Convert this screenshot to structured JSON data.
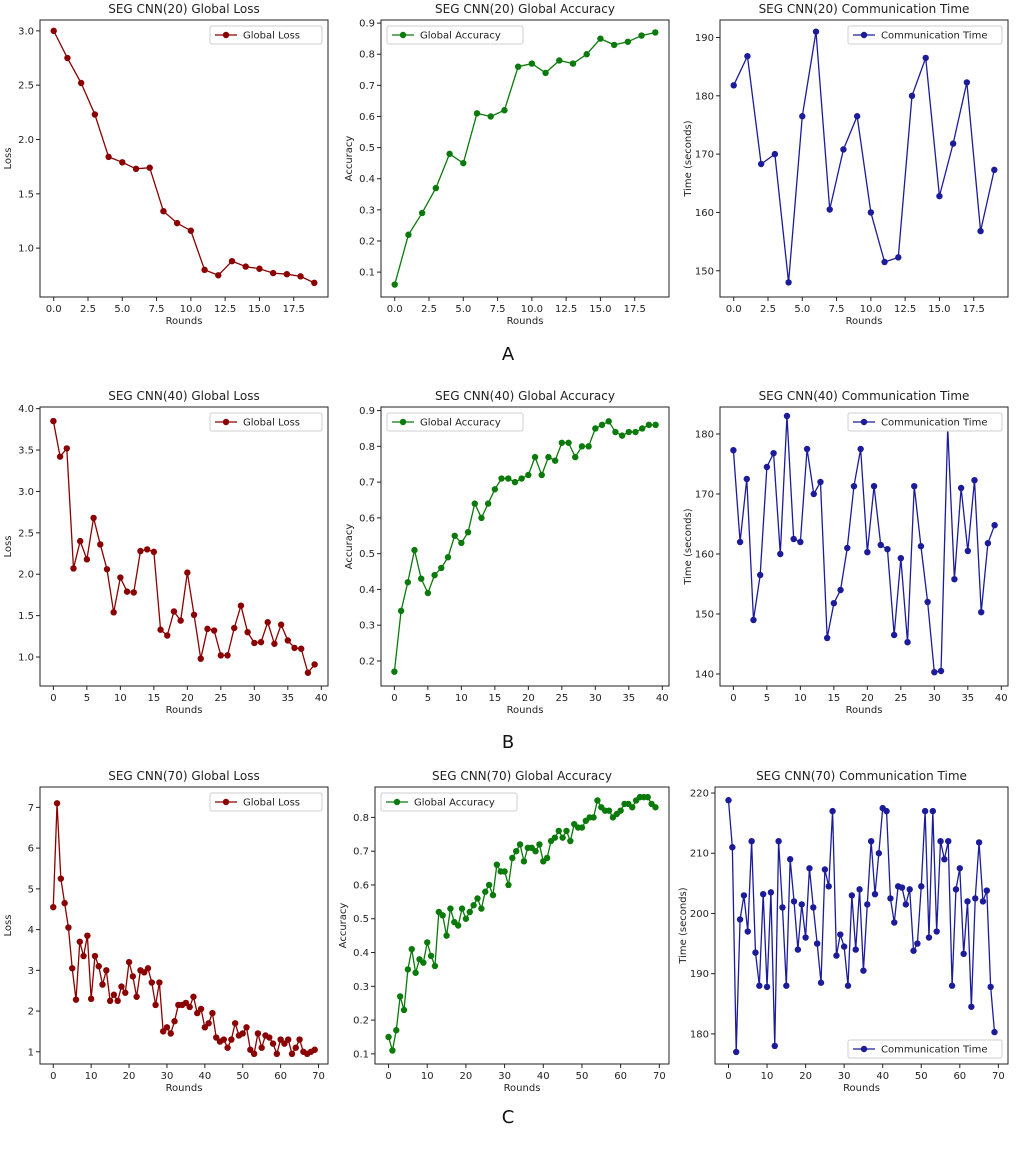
{
  "figure": {
    "row_labels": [
      "A",
      "B",
      "C"
    ],
    "colors": {
      "loss": "#8b0000",
      "accuracy": "#0a7a0a",
      "time": "#1c1c9a"
    }
  },
  "chart_data": [
    {
      "type": "line",
      "title": "SEG CNN(20) Global Loss",
      "xlabel": "Rounds",
      "ylabel": "Loss",
      "series": [
        {
          "name": "Global Loss",
          "color": "#8b0000",
          "values": [
            3.0,
            2.75,
            2.52,
            2.23,
            1.84,
            1.79,
            1.73,
            1.74,
            1.34,
            1.23,
            1.16,
            0.8,
            0.75,
            0.88,
            0.83,
            0.81,
            0.77,
            0.76,
            0.74,
            0.68
          ]
        }
      ],
      "xlim": [
        -1,
        20
      ],
      "ylim": [
        0.55,
        3.1
      ],
      "xticks": [
        0,
        2.5,
        5,
        7.5,
        10,
        12.5,
        15,
        17.5
      ],
      "xtick_labels": [
        "0.0",
        "2.5",
        "5.0",
        "7.5",
        "10.0",
        "12.5",
        "15.0",
        "17.5"
      ],
      "yticks": [
        1.0,
        1.5,
        2.0,
        2.5,
        3.0
      ],
      "ytick_labels": [
        "1.0",
        "1.5",
        "2.0",
        "2.5",
        "3.0"
      ],
      "legend": "top-right"
    },
    {
      "type": "line",
      "title": "SEG CNN(20) Global Accuracy",
      "xlabel": "Rounds",
      "ylabel": "Accuracy",
      "series": [
        {
          "name": "Global Accuracy",
          "color": "#0a7a0a",
          "values": [
            0.06,
            0.22,
            0.29,
            0.37,
            0.48,
            0.45,
            0.61,
            0.6,
            0.62,
            0.76,
            0.77,
            0.74,
            0.78,
            0.77,
            0.8,
            0.85,
            0.83,
            0.84,
            0.86,
            0.87
          ]
        }
      ],
      "xlim": [
        -1,
        20
      ],
      "ylim": [
        0.02,
        0.91
      ],
      "xticks": [
        0,
        2.5,
        5,
        7.5,
        10,
        12.5,
        15,
        17.5
      ],
      "xtick_labels": [
        "0.0",
        "2.5",
        "5.0",
        "7.5",
        "10.0",
        "12.5",
        "15.0",
        "17.5"
      ],
      "yticks": [
        0.1,
        0.2,
        0.3,
        0.4,
        0.5,
        0.6,
        0.7,
        0.8,
        0.9
      ],
      "ytick_labels": [
        "0.1",
        "0.2",
        "0.3",
        "0.4",
        "0.5",
        "0.6",
        "0.7",
        "0.8",
        "0.9"
      ],
      "legend": "top-left"
    },
    {
      "type": "line",
      "title": "SEG CNN(20) Communication Time",
      "xlabel": "Rounds",
      "ylabel": "Time (seconds)",
      "series": [
        {
          "name": "Communication Time",
          "color": "#1c1c9a",
          "values": [
            181.8,
            186.8,
            168.3,
            170.0,
            148.0,
            176.5,
            191.0,
            160.5,
            170.8,
            176.5,
            160.0,
            151.5,
            152.3,
            180.0,
            186.5,
            162.8,
            171.8,
            182.3,
            156.8,
            167.3
          ]
        }
      ],
      "xlim": [
        -1,
        20
      ],
      "ylim": [
        145.5,
        193
      ],
      "xticks": [
        0,
        2.5,
        5,
        7.5,
        10,
        12.5,
        15,
        17.5
      ],
      "xtick_labels": [
        "0.0",
        "2.5",
        "5.0",
        "7.5",
        "10.0",
        "12.5",
        "15.0",
        "17.5"
      ],
      "yticks": [
        150,
        160,
        170,
        180,
        190
      ],
      "ytick_labels": [
        "150",
        "160",
        "170",
        "180",
        "190"
      ],
      "legend": "top-right"
    },
    {
      "type": "line",
      "title": "SEG CNN(40) Global Loss",
      "xlabel": "Rounds",
      "ylabel": "Loss",
      "series": [
        {
          "name": "Global Loss",
          "color": "#8b0000",
          "values": [
            3.85,
            3.42,
            3.52,
            2.07,
            2.4,
            2.18,
            2.68,
            2.36,
            2.06,
            1.54,
            1.96,
            1.79,
            1.78,
            2.28,
            2.3,
            2.27,
            1.33,
            1.26,
            1.55,
            1.44,
            2.02,
            1.51,
            0.98,
            1.34,
            1.32,
            1.02,
            1.02,
            1.35,
            1.62,
            1.3,
            1.17,
            1.18,
            1.42,
            1.16,
            1.39,
            1.2,
            1.11,
            1.1,
            0.81,
            0.91
          ]
        }
      ],
      "xlim": [
        -2,
        41
      ],
      "ylim": [
        0.65,
        4.02
      ],
      "xticks": [
        0,
        5,
        10,
        15,
        20,
        25,
        30,
        35,
        40
      ],
      "xtick_labels": [
        "0",
        "5",
        "10",
        "15",
        "20",
        "25",
        "30",
        "35",
        "40"
      ],
      "yticks": [
        1.0,
        1.5,
        2.0,
        2.5,
        3.0,
        3.5,
        4.0
      ],
      "ytick_labels": [
        "1.0",
        "1.5",
        "2.0",
        "2.5",
        "3.0",
        "3.5",
        "4.0"
      ],
      "legend": "top-right"
    },
    {
      "type": "line",
      "title": "SEG CNN(40) Global Accuracy",
      "xlabel": "Rounds",
      "ylabel": "Accuracy",
      "series": [
        {
          "name": "Global Accuracy",
          "color": "#0a7a0a",
          "values": [
            0.17,
            0.34,
            0.42,
            0.51,
            0.43,
            0.39,
            0.44,
            0.46,
            0.49,
            0.55,
            0.53,
            0.56,
            0.64,
            0.6,
            0.64,
            0.68,
            0.71,
            0.71,
            0.7,
            0.71,
            0.72,
            0.77,
            0.72,
            0.77,
            0.76,
            0.81,
            0.81,
            0.77,
            0.8,
            0.8,
            0.85,
            0.86,
            0.87,
            0.84,
            0.83,
            0.84,
            0.84,
            0.85,
            0.86,
            0.86
          ]
        }
      ],
      "xlim": [
        -2,
        41
      ],
      "ylim": [
        0.13,
        0.91
      ],
      "xticks": [
        0,
        5,
        10,
        15,
        20,
        25,
        30,
        35,
        40
      ],
      "xtick_labels": [
        "0",
        "5",
        "10",
        "15",
        "20",
        "25",
        "30",
        "35",
        "40"
      ],
      "yticks": [
        0.2,
        0.3,
        0.4,
        0.5,
        0.6,
        0.7,
        0.8,
        0.9
      ],
      "ytick_labels": [
        "0.2",
        "0.3",
        "0.4",
        "0.5",
        "0.6",
        "0.7",
        "0.8",
        "0.9"
      ],
      "legend": "top-left"
    },
    {
      "type": "line",
      "title": "SEG CNN(40) Communication Time",
      "xlabel": "Rounds",
      "ylabel": "Time (seconds)",
      "series": [
        {
          "name": "Communication Time",
          "color": "#1c1c9a",
          "values": [
            177.3,
            162.0,
            172.5,
            149.0,
            156.5,
            174.5,
            176.8,
            160.0,
            183.0,
            162.5,
            162.0,
            177.5,
            170.0,
            172.0,
            146.0,
            151.8,
            154.0,
            161.0,
            171.3,
            177.5,
            160.3,
            171.3,
            161.5,
            160.8,
            146.5,
            159.3,
            145.3,
            171.3,
            161.3,
            152.0,
            140.3,
            140.5,
            181.0,
            155.8,
            171.0,
            160.5,
            172.3,
            150.3,
            161.8,
            164.8
          ]
        }
      ],
      "xlim": [
        -2,
        41
      ],
      "ylim": [
        138,
        184.5
      ],
      "xticks": [
        0,
        5,
        10,
        15,
        20,
        25,
        30,
        35,
        40
      ],
      "xtick_labels": [
        "0",
        "5",
        "10",
        "15",
        "20",
        "25",
        "30",
        "35",
        "40"
      ],
      "yticks": [
        140,
        150,
        160,
        170,
        180
      ],
      "ytick_labels": [
        "140",
        "150",
        "160",
        "170",
        "180"
      ],
      "legend": "top-right"
    },
    {
      "type": "line",
      "title": "SEG CNN(70) Global Loss",
      "xlabel": "Rounds",
      "ylabel": "Loss",
      "series": [
        {
          "name": "Global Loss",
          "color": "#8b0000",
          "values": [
            4.55,
            7.1,
            5.25,
            4.65,
            4.05,
            3.05,
            2.28,
            3.7,
            3.35,
            3.85,
            2.3,
            3.35,
            3.1,
            2.65,
            3.0,
            2.25,
            2.4,
            2.25,
            2.6,
            2.45,
            3.2,
            2.85,
            2.35,
            3.0,
            2.95,
            3.05,
            2.7,
            2.15,
            2.7,
            1.5,
            1.6,
            1.45,
            1.75,
            2.15,
            2.15,
            2.2,
            2.1,
            2.35,
            1.95,
            2.05,
            1.6,
            1.7,
            1.95,
            1.35,
            1.25,
            1.3,
            1.1,
            1.3,
            1.7,
            1.4,
            1.45,
            1.6,
            1.05,
            0.95,
            1.45,
            1.1,
            1.4,
            1.35,
            1.2,
            0.95,
            1.3,
            1.2,
            1.3,
            0.95,
            1.1,
            1.3,
            1.0,
            0.95,
            1.0,
            1.05
          ]
        }
      ],
      "xlim": [
        -3.5,
        72.5
      ],
      "ylim": [
        0.7,
        7.5
      ],
      "xticks": [
        0,
        10,
        20,
        30,
        40,
        50,
        60,
        70
      ],
      "xtick_labels": [
        "0",
        "10",
        "20",
        "30",
        "40",
        "50",
        "60",
        "70"
      ],
      "yticks": [
        1,
        2,
        3,
        4,
        5,
        6,
        7
      ],
      "ytick_labels": [
        "1",
        "2",
        "3",
        "4",
        "5",
        "6",
        "7"
      ],
      "legend": "top-right"
    },
    {
      "type": "line",
      "title": "SEG CNN(70) Global Accuracy",
      "xlabel": "Rounds",
      "ylabel": "Accuracy",
      "series": [
        {
          "name": "Global Accuracy",
          "color": "#0a7a0a",
          "values": [
            0.15,
            0.11,
            0.17,
            0.27,
            0.23,
            0.35,
            0.41,
            0.34,
            0.38,
            0.37,
            0.43,
            0.39,
            0.36,
            0.52,
            0.51,
            0.45,
            0.53,
            0.49,
            0.48,
            0.53,
            0.5,
            0.52,
            0.54,
            0.56,
            0.53,
            0.58,
            0.6,
            0.57,
            0.66,
            0.64,
            0.64,
            0.6,
            0.68,
            0.7,
            0.72,
            0.67,
            0.71,
            0.71,
            0.7,
            0.72,
            0.67,
            0.68,
            0.73,
            0.74,
            0.76,
            0.74,
            0.76,
            0.73,
            0.78,
            0.77,
            0.77,
            0.79,
            0.8,
            0.8,
            0.85,
            0.83,
            0.82,
            0.82,
            0.8,
            0.81,
            0.82,
            0.84,
            0.84,
            0.83,
            0.85,
            0.86,
            0.86,
            0.86,
            0.84,
            0.83
          ]
        }
      ],
      "xlim": [
        -3.5,
        72.5
      ],
      "ylim": [
        0.07,
        0.89
      ],
      "xticks": [
        0,
        10,
        20,
        30,
        40,
        50,
        60,
        70
      ],
      "xtick_labels": [
        "0",
        "10",
        "20",
        "30",
        "40",
        "50",
        "60",
        "70"
      ],
      "yticks": [
        0.1,
        0.2,
        0.3,
        0.4,
        0.5,
        0.6,
        0.7,
        0.8
      ],
      "ytick_labels": [
        "0.1",
        "0.2",
        "0.3",
        "0.4",
        "0.5",
        "0.6",
        "0.7",
        "0.8"
      ],
      "legend": "top-left"
    },
    {
      "type": "line",
      "title": "SEG CNN(70) Communication Time",
      "xlabel": "Rounds",
      "ylabel": "Time (seconds)",
      "series": [
        {
          "name": "Communication Time",
          "color": "#1c1c9a",
          "values": [
            218.8,
            211.0,
            177.0,
            199.0,
            203.0,
            197.0,
            212.0,
            193.5,
            188.0,
            203.2,
            187.8,
            203.5,
            178.0,
            212.0,
            201.0,
            188.0,
            209.0,
            202.0,
            194.0,
            201.5,
            196.0,
            207.5,
            201.0,
            195.0,
            188.5,
            207.3,
            204.5,
            217.0,
            193.0,
            196.5,
            194.5,
            188.0,
            203.0,
            194.0,
            204.0,
            190.5,
            201.5,
            212.0,
            203.2,
            210.0,
            217.5,
            217.0,
            202.5,
            198.5,
            204.5,
            204.3,
            201.5,
            204.0,
            193.8,
            195.0,
            204.5,
            217.0,
            196.0,
            217.0,
            197.0,
            212.0,
            209.0,
            212.0,
            188.0,
            204.0,
            207.5,
            193.3,
            202.0,
            184.5,
            202.5,
            211.8,
            202.0,
            203.8,
            187.8,
            180.3
          ]
        }
      ],
      "xlim": [
        -3.5,
        72.5
      ],
      "ylim": [
        175,
        221
      ],
      "xticks": [
        0,
        10,
        20,
        30,
        40,
        50,
        60,
        70
      ],
      "xtick_labels": [
        "0",
        "10",
        "20",
        "30",
        "40",
        "50",
        "60",
        "70"
      ],
      "yticks": [
        180,
        190,
        200,
        210,
        220
      ],
      "ytick_labels": [
        "180",
        "190",
        "200",
        "210",
        "220"
      ],
      "legend": "bottom-right"
    }
  ]
}
